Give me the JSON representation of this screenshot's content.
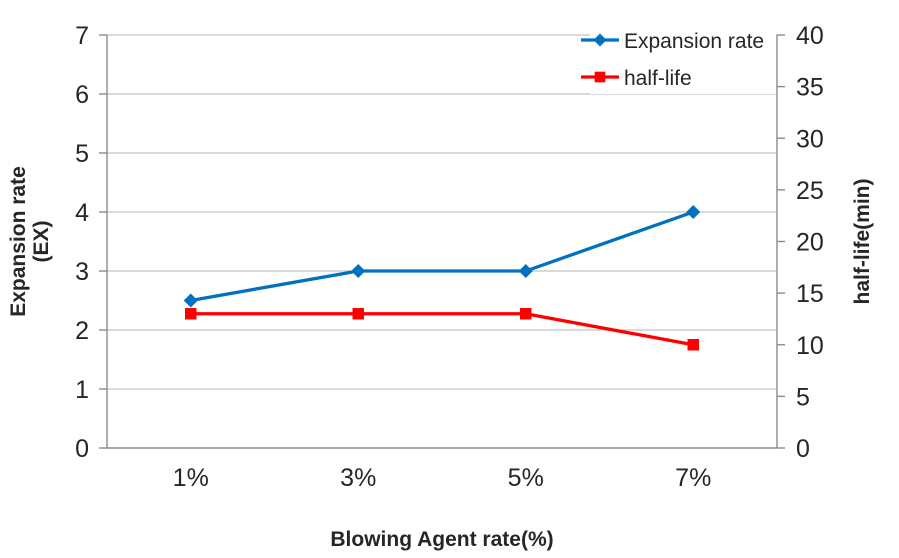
{
  "chart_data": {
    "type": "line",
    "title": "",
    "categories": [
      "1%",
      "3%",
      "5%",
      "7%"
    ],
    "series": [
      {
        "name": "Expansion rate",
        "values": [
          2.5,
          3,
          3,
          4
        ],
        "axis": "left",
        "color": "#0070C0",
        "marker": "diamond"
      },
      {
        "name": "half-life",
        "values": [
          13,
          13,
          13,
          10
        ],
        "axis": "right",
        "color": "#FF0000",
        "marker": "square"
      }
    ],
    "x_axis": {
      "title": "Blowing Agent rate(%)",
      "tick_labels": [
        "1%",
        "3%",
        "5%",
        "7%"
      ]
    },
    "left_axis": {
      "title": "Expansion rate (EX)",
      "title_lines": [
        "Expansion rate",
        "(EX)"
      ],
      "min": 0,
      "max": 7,
      "step": 1,
      "tick_labels": [
        "0",
        "1",
        "2",
        "3",
        "4",
        "5",
        "6",
        "7"
      ]
    },
    "right_axis": {
      "title": "half-life(min)",
      "min": 0,
      "max": 40,
      "step": 5,
      "tick_labels": [
        "0",
        "5",
        "10",
        "15",
        "20",
        "25",
        "30",
        "35",
        "40"
      ]
    },
    "legend": {
      "position": "top-right",
      "entries": [
        "Expansion rate",
        "half-life"
      ]
    },
    "grid": true,
    "colors": {
      "grid": "#C3C3C3",
      "axis": "#8C8C8C",
      "text": "#262626",
      "background": "#FFFFFF"
    }
  }
}
